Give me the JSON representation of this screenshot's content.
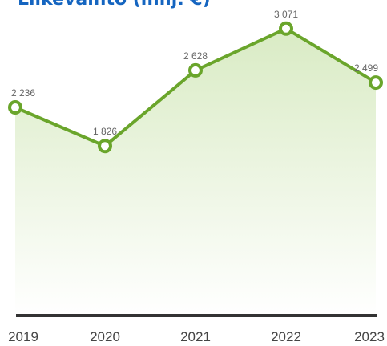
{
  "chart_data": {
    "type": "area",
    "title": "Liikevaihto (milj. €)",
    "categories": [
      "2019",
      "2020",
      "2021",
      "2022",
      "2023"
    ],
    "values": [
      2236,
      1826,
      2628,
      3071,
      2499
    ],
    "value_labels": [
      "2 236",
      "1 826",
      "2 628",
      "3 071",
      "2 499"
    ],
    "xlabel": "",
    "ylabel": "",
    "grid": false,
    "legend": "none",
    "colors": {
      "line": "#6aa52b",
      "fill_top": "#d9ebc4",
      "fill_bottom": "#ffffff",
      "marker_fill": "#ffffff",
      "baseline": "#333333",
      "title": "#1565c0"
    }
  }
}
